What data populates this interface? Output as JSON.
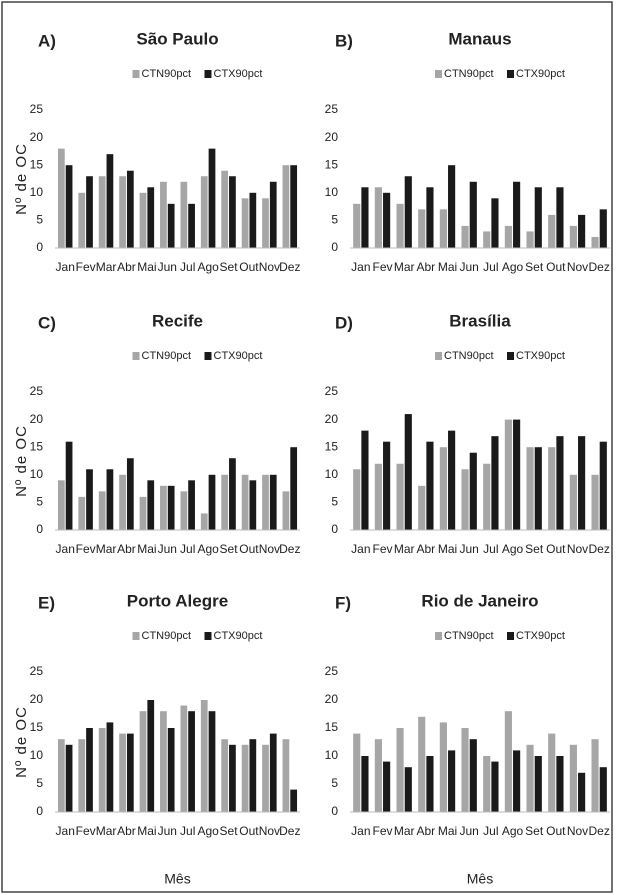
{
  "chart_data": [
    {
      "type": "bar",
      "label": "A)",
      "title": "São Paulo",
      "y_label": "Nº de OC",
      "categories": [
        "Jan",
        "Fev",
        "Mar",
        "Abr",
        "Mai",
        "Jun",
        "Jul",
        "Ago",
        "Set",
        "Out",
        "Nov",
        "Dez"
      ],
      "series": [
        {
          "name": "CTN90pct",
          "color": "#a6a6a6",
          "values": [
            18,
            10,
            13,
            13,
            10,
            12,
            12,
            13,
            14,
            9,
            9,
            15
          ]
        },
        {
          "name": "CTX90pct",
          "color": "#1a1a1a",
          "values": [
            15,
            13,
            17,
            14,
            11,
            8,
            8,
            18,
            13,
            10,
            12,
            15
          ]
        }
      ],
      "ylim": [
        0,
        25
      ],
      "yticks": [
        0,
        5,
        10,
        15,
        20,
        25
      ]
    },
    {
      "type": "bar",
      "label": "B)",
      "title": "Manaus",
      "categories": [
        "Jan",
        "Fev",
        "Mar",
        "Abr",
        "Mai",
        "Jun",
        "Jul",
        "Ago",
        "Set",
        "Out",
        "Nov",
        "Dez"
      ],
      "series": [
        {
          "name": "CTN90pct",
          "color": "#a6a6a6",
          "values": [
            8,
            11,
            8,
            7,
            7,
            4,
            3,
            4,
            3,
            6,
            4,
            2
          ]
        },
        {
          "name": "CTX90pct",
          "color": "#1a1a1a",
          "values": [
            11,
            10,
            13,
            11,
            15,
            12,
            9,
            12,
            11,
            11,
            6,
            7
          ]
        }
      ],
      "ylim": [
        0,
        25
      ],
      "yticks": [
        0,
        5,
        10,
        15,
        20,
        25
      ]
    },
    {
      "type": "bar",
      "label": "C)",
      "title": "Recife",
      "y_label": "Nº de OC",
      "categories": [
        "Jan",
        "Fev",
        "Mar",
        "Abr",
        "Mai",
        "Jun",
        "Jul",
        "Ago",
        "Set",
        "Out",
        "Nov",
        "Dez"
      ],
      "series": [
        {
          "name": "CTN90pct",
          "color": "#a6a6a6",
          "values": [
            9,
            6,
            7,
            10,
            6,
            8,
            7,
            3,
            10,
            10,
            10,
            7
          ]
        },
        {
          "name": "CTX90pct",
          "color": "#1a1a1a",
          "values": [
            16,
            11,
            11,
            13,
            9,
            8,
            9,
            10,
            13,
            9,
            10,
            15
          ]
        }
      ],
      "ylim": [
        0,
        25
      ],
      "yticks": [
        0,
        5,
        10,
        15,
        20,
        25
      ]
    },
    {
      "type": "bar",
      "label": "D)",
      "title": "Brasília",
      "categories": [
        "Jan",
        "Fev",
        "Mar",
        "Abr",
        "Mai",
        "Jun",
        "Jul",
        "Ago",
        "Set",
        "Out",
        "Nov",
        "Dez"
      ],
      "series": [
        {
          "name": "CTN90pct",
          "color": "#a6a6a6",
          "values": [
            11,
            12,
            12,
            8,
            15,
            11,
            12,
            20,
            15,
            15,
            10,
            10
          ]
        },
        {
          "name": "CTX90pct",
          "color": "#1a1a1a",
          "values": [
            18,
            16,
            21,
            16,
            18,
            14,
            17,
            20,
            15,
            17,
            17,
            16
          ]
        }
      ],
      "ylim": [
        0,
        25
      ],
      "yticks": [
        0,
        5,
        10,
        15,
        20,
        25
      ]
    },
    {
      "type": "bar",
      "label": "E)",
      "title": "Porto Alegre",
      "y_label": "Nº de OC",
      "x_label": "Mês",
      "categories": [
        "Jan",
        "Fev",
        "Mar",
        "Abr",
        "Mai",
        "Jun",
        "Jul",
        "Ago",
        "Set",
        "Out",
        "Nov",
        "Dez"
      ],
      "series": [
        {
          "name": "CTN90pct",
          "color": "#a6a6a6",
          "values": [
            13,
            13,
            15,
            14,
            18,
            18,
            19,
            20,
            13,
            12,
            12,
            13
          ]
        },
        {
          "name": "CTX90pct",
          "color": "#1a1a1a",
          "values": [
            12,
            15,
            16,
            14,
            20,
            15,
            18,
            18,
            12,
            13,
            14,
            4
          ]
        }
      ],
      "ylim": [
        0,
        25
      ],
      "yticks": [
        0,
        5,
        10,
        15,
        20,
        25
      ]
    },
    {
      "type": "bar",
      "label": "F)",
      "title": "Rio de Janeiro",
      "x_label": "Mês",
      "categories": [
        "Jan",
        "Fev",
        "Mar",
        "Abr",
        "Mai",
        "Jun",
        "Jul",
        "Ago",
        "Set",
        "Out",
        "Nov",
        "Dez"
      ],
      "series": [
        {
          "name": "CTN90pct",
          "color": "#a6a6a6",
          "values": [
            14,
            13,
            15,
            17,
            16,
            15,
            10,
            18,
            12,
            14,
            12,
            13
          ]
        },
        {
          "name": "CTX90pct",
          "color": "#1a1a1a",
          "values": [
            10,
            9,
            8,
            10,
            11,
            13,
            9,
            11,
            10,
            10,
            7,
            8
          ]
        }
      ],
      "ylim": [
        0,
        25
      ],
      "yticks": [
        0,
        5,
        10,
        15,
        20,
        25
      ]
    }
  ]
}
